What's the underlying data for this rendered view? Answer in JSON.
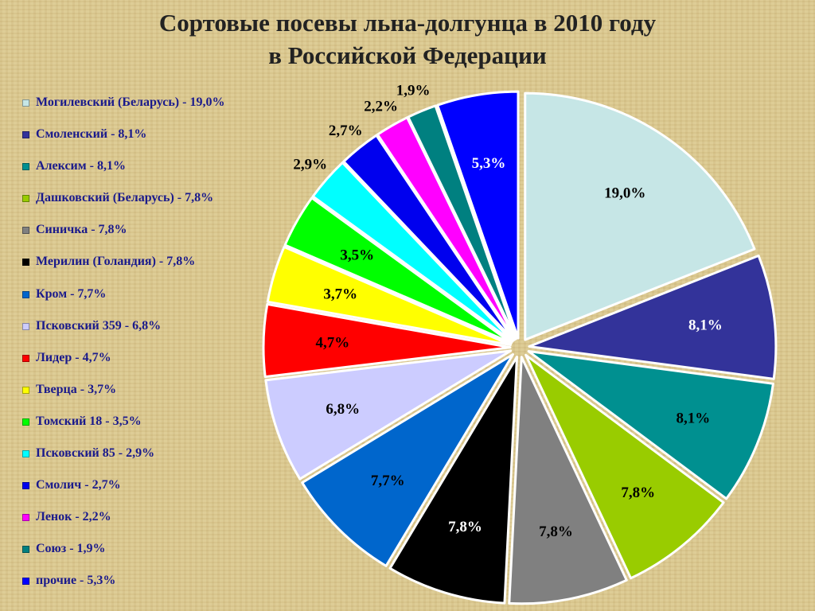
{
  "title": {
    "line1": "Сортовые посевы льна-долгунца в 2010 году",
    "line2": "в Российской Федерации"
  },
  "chart_data": {
    "type": "pie",
    "title": "Сортовые посевы льна-долгунца в 2010 году в Российской Федерации",
    "legend_position": "left",
    "slices": [
      {
        "name": "Могилевский  (Беларусь)",
        "value": 19.0,
        "legend": "Могилевский  (Беларусь) - 19,0%",
        "label": "19,0%",
        "color": "#c6e6e6",
        "label_color": "#000000"
      },
      {
        "name": "Смоленский",
        "value": 8.1,
        "legend": "Смоленский - 8,1%",
        "label": "8,1%",
        "color": "#33339a",
        "label_color": "#ffffff"
      },
      {
        "name": "Алексим",
        "value": 8.1,
        "legend": "Алексим - 8,1%",
        "label": "8,1%",
        "color": "#009090",
        "label_color": "#000000"
      },
      {
        "name": "Дашковский (Беларусь)",
        "value": 7.8,
        "legend": "Дашковский (Беларусь) - 7,8%",
        "label": "7,8%",
        "color": "#99cc00",
        "label_color": "#000000"
      },
      {
        "name": "Синичка",
        "value": 7.8,
        "legend": "Синичка - 7,8%",
        "label": "7,8%",
        "color": "#808080",
        "label_color": "#000000"
      },
      {
        "name": "Мерилин (Голандия)",
        "value": 7.8,
        "legend": "Мерилин (Голандия) - 7,8%",
        "label": "7,8%",
        "color": "#000000",
        "label_color": "#ffffff"
      },
      {
        "name": "Кром",
        "value": 7.7,
        "legend": "Кром - 7,7%",
        "label": "7,7%",
        "color": "#0066cc",
        "label_color": "#000000"
      },
      {
        "name": "Псковский 359",
        "value": 6.8,
        "legend": "Псковский 359 - 6,8%",
        "label": "6,8%",
        "color": "#ccccff",
        "label_color": "#000000"
      },
      {
        "name": "Лидер",
        "value": 4.7,
        "legend": "Лидер - 4,7%",
        "label": "4,7%",
        "color": "#ff0000",
        "label_color": "#000000"
      },
      {
        "name": "Тверца",
        "value": 3.7,
        "legend": "Тверца - 3,7%",
        "label": "3,7%",
        "color": "#ffff00",
        "label_color": "#000000"
      },
      {
        "name": "Томский 18",
        "value": 3.5,
        "legend": "Томский 18 - 3,5%",
        "label": "3,5%",
        "color": "#00ff00",
        "label_color": "#000000"
      },
      {
        "name": "Псковский 85",
        "value": 2.9,
        "legend": "Псковский 85 - 2,9%",
        "label": "2,9%",
        "color": "#00ffff",
        "label_color": "#000000"
      },
      {
        "name": "Смолич",
        "value": 2.7,
        "legend": "Смолич - 2,7%",
        "label": "2,7%",
        "color": "#0000ee",
        "label_color": "#000000"
      },
      {
        "name": "Ленок",
        "value": 2.2,
        "legend": "Ленок - 2,2%",
        "label": "2,2%",
        "color": "#ff00ff",
        "label_color": "#000000"
      },
      {
        "name": "Союз",
        "value": 1.9,
        "legend": "Союз - 1,9%",
        "label": "1,9%",
        "color": "#008080",
        "label_color": "#000000"
      },
      {
        "name": "прочие",
        "value": 5.3,
        "legend": "прочие - 5,3%",
        "label": "5,3%",
        "color": "#0000ff",
        "label_color": "#ffffff"
      }
    ]
  }
}
